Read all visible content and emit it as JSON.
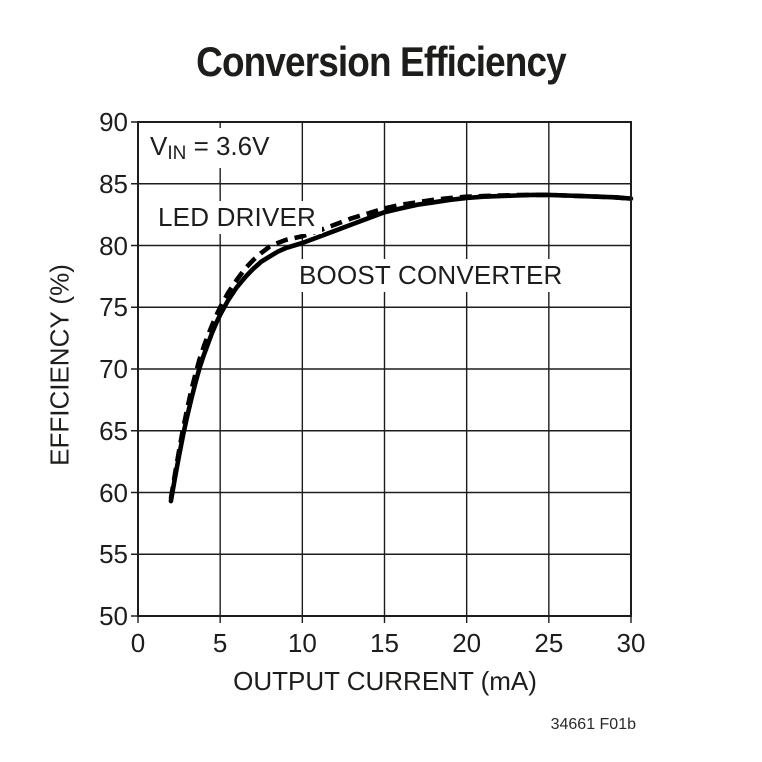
{
  "title": "Conversion Efficiency",
  "footer": "34661 F01b",
  "annotation": {
    "v": "V",
    "sub": "IN",
    "rest": " = 3.6V",
    "text": "VIN = 3.6V"
  },
  "colors": {
    "ink": "#1d1d1b",
    "grid": "#1d1d1b",
    "curve": "#000000",
    "background": "#ffffff"
  },
  "chart_data": {
    "type": "line",
    "title": "Conversion Efficiency",
    "xlabel": "OUTPUT CURRENT (mA)",
    "ylabel": "EFFICIENCY (%)",
    "xlim": [
      0,
      30
    ],
    "ylim": [
      50,
      90
    ],
    "x_ticks": [
      0,
      5,
      10,
      15,
      20,
      25,
      30
    ],
    "y_ticks": [
      90,
      85,
      80,
      75,
      70,
      65,
      60,
      55,
      50
    ],
    "grid": true,
    "legend_position": "inline-labels",
    "annotation": "VIN = 3.6V",
    "series": [
      {
        "name": "BOOST CONVERTER",
        "style": "solid",
        "points": [
          [
            2,
            59.3
          ],
          [
            2.25,
            61.2
          ],
          [
            2.5,
            63.0
          ],
          [
            2.75,
            64.7
          ],
          [
            3,
            66.2
          ],
          [
            3.25,
            67.6
          ],
          [
            3.5,
            68.9
          ],
          [
            3.75,
            70.1
          ],
          [
            4,
            71.1
          ],
          [
            4.25,
            72.0
          ],
          [
            4.5,
            72.9
          ],
          [
            4.75,
            73.7
          ],
          [
            5,
            74.4
          ],
          [
            5.5,
            75.6
          ],
          [
            6,
            76.6
          ],
          [
            6.5,
            77.4
          ],
          [
            7,
            78.1
          ],
          [
            7.5,
            78.7
          ],
          [
            8,
            79.1
          ],
          [
            8.5,
            79.5
          ],
          [
            9,
            79.8
          ],
          [
            9.5,
            80.0
          ],
          [
            10,
            80.2
          ],
          [
            11,
            80.7
          ],
          [
            12,
            81.2
          ],
          [
            13,
            81.7
          ],
          [
            14,
            82.2
          ],
          [
            15,
            82.7
          ],
          [
            16,
            83.0
          ],
          [
            17,
            83.3
          ],
          [
            18,
            83.5
          ],
          [
            19,
            83.7
          ],
          [
            20,
            83.85
          ],
          [
            21,
            83.95
          ],
          [
            22,
            84.0
          ],
          [
            23,
            84.05
          ],
          [
            24,
            84.1
          ],
          [
            25,
            84.1
          ],
          [
            26,
            84.05
          ],
          [
            27,
            84.0
          ],
          [
            28,
            83.95
          ],
          [
            29,
            83.9
          ],
          [
            30,
            83.8
          ]
        ]
      },
      {
        "name": "LED DRIVER",
        "style": "dashed",
        "points": [
          [
            2,
            59.5
          ],
          [
            2.25,
            61.5
          ],
          [
            2.5,
            63.4
          ],
          [
            2.75,
            65.2
          ],
          [
            3,
            66.8
          ],
          [
            3.25,
            68.3
          ],
          [
            3.5,
            69.6
          ],
          [
            3.75,
            70.8
          ],
          [
            4,
            71.8
          ],
          [
            4.25,
            72.7
          ],
          [
            4.5,
            73.5
          ],
          [
            4.75,
            74.3
          ],
          [
            5,
            75.0
          ],
          [
            5.5,
            76.2
          ],
          [
            6,
            77.2
          ],
          [
            6.5,
            78.1
          ],
          [
            7,
            78.8
          ],
          [
            7.5,
            79.4
          ],
          [
            8,
            79.9
          ],
          [
            8.5,
            80.2
          ],
          [
            9,
            80.45
          ],
          [
            9.5,
            80.6
          ],
          [
            10,
            80.75
          ],
          [
            11,
            81.2
          ],
          [
            12,
            81.7
          ],
          [
            13,
            82.2
          ],
          [
            14,
            82.6
          ],
          [
            15,
            83.0
          ],
          [
            16,
            83.3
          ],
          [
            17,
            83.5
          ],
          [
            18,
            83.7
          ],
          [
            19,
            83.85
          ],
          [
            20,
            83.95
          ],
          [
            21,
            84.0
          ],
          [
            22,
            84.05
          ],
          [
            23,
            84.08
          ],
          [
            24,
            84.1
          ],
          [
            25,
            84.1
          ],
          [
            26,
            84.05
          ],
          [
            27,
            84.0
          ],
          [
            28,
            83.95
          ],
          [
            29,
            83.9
          ],
          [
            30,
            83.8
          ]
        ]
      }
    ]
  }
}
